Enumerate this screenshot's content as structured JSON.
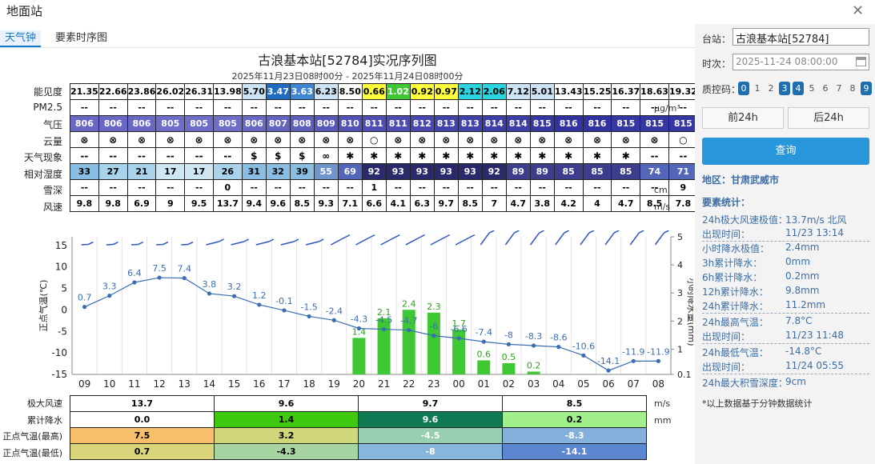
{
  "window": {
    "title": "地面站",
    "close": "✕"
  },
  "tabs": [
    {
      "label": "天气钟"
    },
    {
      "label": "要素时序图"
    }
  ],
  "chart": {
    "title": "古浪基本站[52784]实况序列图",
    "subtitle": "2025年11月23日08时00分 - 2025年11月24日08时00分"
  },
  "rows": [
    {
      "label": "能见度",
      "unit": "km",
      "values": [
        "21.35",
        "22.66",
        "23.86",
        "26.02",
        "26.31",
        "13.98",
        "5.70",
        "3.47",
        "3.63",
        "6.23",
        "8.50",
        "0.66",
        "1.02",
        "0.92",
        "0.97",
        "2.12",
        "2.06",
        "7.12",
        "5.01",
        "13.43",
        "15.25",
        "16.37",
        "18.63",
        "19.32"
      ],
      "colors": [
        "#fff",
        "#fff",
        "#fff",
        "#fff",
        "#fff",
        "#fff",
        "#cde4f7",
        "#1f6bc2",
        "#3d86d4",
        "#cde4f7",
        "#fff",
        "#ffff3c",
        "#3ec834",
        "#ffff3c",
        "#ffff3c",
        "#2ad5e0",
        "#2ad5e0",
        "#cde4f7",
        "#cde4f7",
        "#fff",
        "#fff",
        "#fff",
        "#fff",
        "#fff"
      ]
    },
    {
      "label": "PM2.5",
      "unit": "μg/m³",
      "values": [
        "--",
        "--",
        "--",
        "--",
        "--",
        "--",
        "--",
        "--",
        "--",
        "--",
        "--",
        "--",
        "--",
        "--",
        "--",
        "--",
        "--",
        "--",
        "--",
        "--",
        "--",
        "--",
        "--",
        "--"
      ]
    },
    {
      "label": "气压",
      "unit": "hPa",
      "values": [
        "806",
        "806",
        "806",
        "805",
        "805",
        "805",
        "806",
        "807",
        "808",
        "809",
        "810",
        "811",
        "811",
        "812",
        "813",
        "813",
        "814",
        "814",
        "815",
        "816",
        "816",
        "815",
        "815",
        "815"
      ]
    },
    {
      "label": "云量",
      "unit": "",
      "values": [
        "⊗",
        "⊗",
        "⊗",
        "⊗",
        "⊗",
        "⊗",
        "⊗",
        "⊗",
        "⊗",
        "⊗",
        "⊗",
        "○",
        "⊗",
        "⊗",
        "⊗",
        "⊗",
        "⊗",
        "⊗",
        "⊗",
        "⊗",
        "⊗",
        "⊗",
        "⊗",
        "○"
      ]
    },
    {
      "label": "天气现象",
      "unit": "",
      "values": [
        "--",
        "--",
        "--",
        "--",
        "--",
        "--",
        "$",
        "$",
        "$",
        "∞",
        "✱",
        "✱",
        "✱",
        "✱",
        "✱",
        "✱",
        "✱",
        "✱",
        "✱",
        "✱",
        "✱",
        "✱",
        "--",
        "--"
      ]
    },
    {
      "label": "相对湿度",
      "unit": "%",
      "values": [
        "33",
        "27",
        "21",
        "17",
        "17",
        "26",
        "31",
        "32",
        "39",
        "55",
        "69",
        "92",
        "93",
        "93",
        "93",
        "93",
        "92",
        "89",
        "89",
        "85",
        "85",
        "85",
        "74",
        "71"
      ]
    },
    {
      "label": "雪深",
      "unit": "cm",
      "values": [
        "--",
        "--",
        "--",
        "--",
        "--",
        "0",
        "--",
        "--",
        "--",
        "--",
        "--",
        "1",
        "--",
        "--",
        "--",
        "--",
        "--",
        "--",
        "--",
        "--",
        "--",
        "--",
        "--",
        "9"
      ]
    },
    {
      "label": "风速",
      "unit": "m/s",
      "values": [
        "9.8",
        "9.8",
        "6.9",
        "9",
        "9.5",
        "13.7",
        "9.4",
        "9.6",
        "8.5",
        "9.3",
        "7.1",
        "6.6",
        "4.1",
        "6.3",
        "9.7",
        "8.5",
        "7",
        "4.7",
        "3.8",
        "4.2",
        "4",
        "4.7",
        "8.5",
        "7.8"
      ]
    }
  ],
  "chart_data": {
    "type": "line",
    "x": [
      "09",
      "10",
      "11",
      "12",
      "13",
      "14",
      "15",
      "16",
      "17",
      "18",
      "19",
      "20",
      "21",
      "22",
      "23",
      "00",
      "01",
      "02",
      "03",
      "04",
      "05",
      "06",
      "07",
      "08"
    ],
    "ylabel": "正点气温(℃)",
    "y2label": "小时降水量(mm)",
    "ylim": [
      -15,
      17
    ],
    "yticks": [
      "15",
      "10",
      "5",
      "0",
      "-5",
      "-10",
      "-15"
    ],
    "y2ticks": [
      "5",
      "4",
      "3",
      "2",
      "1",
      "0.1"
    ],
    "series": [
      {
        "type": "line",
        "values": [
          0.7,
          3.3,
          6.4,
          7.5,
          7.4,
          3.8,
          3.2,
          1.2,
          -0.1,
          -1.5,
          -2.4,
          -4.3,
          -4.5,
          -4.7,
          -6,
          -6.6,
          -7.4,
          -8,
          -8.3,
          -8.6,
          -10.6,
          -14.1,
          -11.9,
          -11.9
        ],
        "labels": [
          "0.7",
          "3.3",
          "6.4",
          "7.5",
          "7.4",
          "3.8",
          "3.2",
          "1.2",
          "-0.1",
          "-1.5",
          "-2.4",
          "-4.3",
          "-4.5",
          "-4.7",
          "-6",
          "-6.6",
          "-7.4",
          "-8",
          "-8.3",
          "-8.6",
          "-10.6",
          "-14.1",
          "-11.9",
          "-11.9"
        ]
      },
      {
        "type": "bar",
        "values": [
          null,
          null,
          null,
          null,
          null,
          null,
          null,
          null,
          null,
          null,
          null,
          1.4,
          2.1,
          2.4,
          2.3,
          1.7,
          0.6,
          0.5,
          0.2,
          null,
          null,
          null,
          null,
          null
        ],
        "labels": [
          "",
          "",
          "",
          "",
          "",
          "",
          "",
          "",
          "",
          "",
          "",
          "1.4",
          "2.1",
          "2.4",
          "2.3",
          "1.7",
          "0.6",
          "0.5",
          "0.2",
          "",
          "",
          "",
          "",
          ""
        ]
      }
    ]
  },
  "bottom": [
    {
      "label": "极大风速",
      "unit": "m/s",
      "cells": [
        "13.7",
        "9.6",
        "9.7",
        "8.5"
      ],
      "colors": [
        "#fff",
        "#fff",
        "#fff",
        "#fff"
      ]
    },
    {
      "label": "累计降水",
      "unit": "mm",
      "cells": [
        "0.0",
        "1.4",
        "9.6",
        "0.2"
      ],
      "colors": [
        "#fff",
        "#3ec80e",
        "#0f7a54",
        "#a2f08c"
      ]
    },
    {
      "label": "正点气温(最高)",
      "unit": "",
      "cells": [
        "7.5",
        "3.2",
        "-4.5",
        "-8.3"
      ],
      "colors": [
        "#f6c06a",
        "#cfd77a",
        "#96cfb2",
        "#86b0dc"
      ]
    },
    {
      "label": "正点气温(最低)",
      "unit": "",
      "cells": [
        "0.7",
        "-4.3",
        "-8",
        "-14.1"
      ],
      "colors": [
        "#d9d57a",
        "#a6d5a2",
        "#86b6dc",
        "#5a87d0"
      ]
    }
  ],
  "side": {
    "station_label": "台站：",
    "station": "古浪基本站[52784]",
    "time_label": "时次：",
    "time": "2025-11-24 08:00:00",
    "qc_label": "质控码：",
    "qc": [
      "0",
      "1",
      "2",
      "3",
      "4",
      "5",
      "6",
      "7",
      "8",
      "9"
    ],
    "prev": "前24h",
    "next": "后24h",
    "query": "查询",
    "region": "地区：甘肃武威市",
    "stats_title": "要素统计：",
    "stats": [
      [
        "24h极大风速极值：",
        "13.7m/s 北风"
      ],
      [
        "出现时间：",
        "11/23 13:14"
      ],
      [
        "小时降水极值：",
        "2.4mm"
      ],
      [
        "3h累计降水：",
        "0mm"
      ],
      [
        "6h累计降水：",
        "0.2mm"
      ],
      [
        "12h累计降水：",
        "9.8mm"
      ],
      [
        "24h累计降水：",
        "11.2mm"
      ],
      [
        "24h最高气温：",
        "7.8°C"
      ],
      [
        "出现时间：",
        "11/23 11:48"
      ],
      [
        "24h最低气温：",
        "-14.8°C"
      ],
      [
        "出现时间：",
        "11/24 05:55"
      ],
      [
        "24h最大积雪深度：",
        "9cm"
      ]
    ],
    "note": "*以上数据基于分钟数据统计"
  }
}
